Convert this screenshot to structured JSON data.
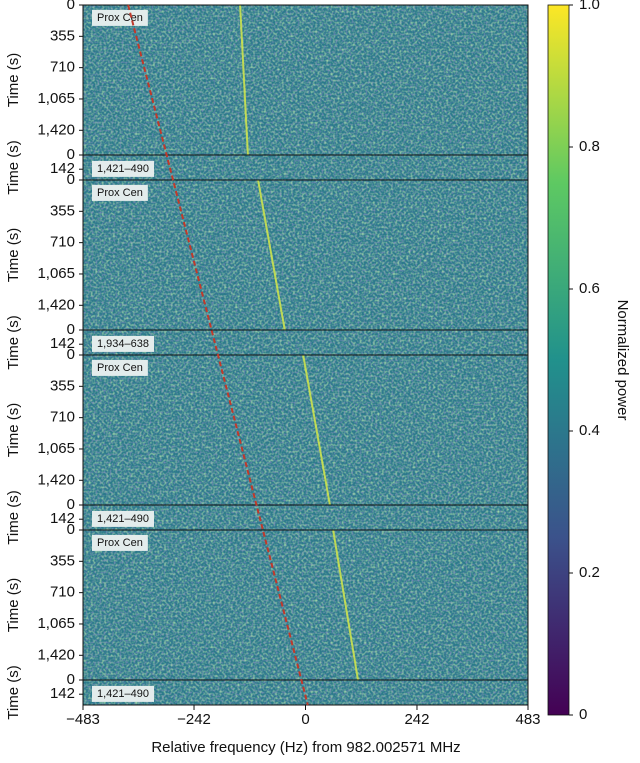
{
  "chart_data": {
    "type": "waterfall",
    "xlabel": "Relative frequency (Hz) from 982.002571 MHz",
    "ylabel": "Time (s)",
    "xlim": [
      -483,
      483
    ],
    "xticks": [
      {
        "value": -483,
        "label": "−483"
      },
      {
        "value": -242,
        "label": "−242"
      },
      0,
      242,
      483
    ],
    "drift": {
      "color": "#c0392b",
      "x": [
        -385,
        5
      ]
    },
    "signal_color": "#d4e84a",
    "panels": [
      {
        "label": "Prox Cen",
        "ylim": [
          0,
          1700
        ],
        "yticks": [
          0,
          355,
          710,
          {
            "value": 1065,
            "label": "1,065"
          },
          {
            "value": 1420,
            "label": "1,420"
          }
        ],
        "signal": [
          -142,
          -125
        ]
      },
      {
        "label": "1,421–490",
        "ylim": [
          0,
          250
        ],
        "yticks": [
          0,
          142
        ]
      },
      {
        "label": "Prox Cen",
        "ylim": [
          0,
          1700
        ],
        "yticks": [
          0,
          355,
          710,
          {
            "value": 1065,
            "label": "1,065"
          },
          {
            "value": 1420,
            "label": "1,420"
          }
        ],
        "signal": [
          -103,
          -45
        ]
      },
      {
        "label": "1,934–638",
        "ylim": [
          0,
          250
        ],
        "yticks": [
          0,
          142
        ]
      },
      {
        "label": "Prox Cen",
        "ylim": [
          0,
          1700
        ],
        "yticks": [
          0,
          355,
          710,
          {
            "value": 1065,
            "label": "1,065"
          },
          {
            "value": 1420,
            "label": "1,420"
          }
        ],
        "signal": [
          -5,
          53
        ]
      },
      {
        "label": "1,421–490",
        "ylim": [
          0,
          250
        ],
        "yticks": [
          0,
          142
        ]
      },
      {
        "label": "Prox Cen",
        "ylim": [
          0,
          1700
        ],
        "yticks": [
          0,
          355,
          710,
          {
            "value": 1065,
            "label": "1,065"
          },
          {
            "value": 1420,
            "label": "1,420"
          }
        ],
        "signal": [
          60,
          114
        ]
      },
      {
        "label": "1,421–490",
        "ylim": [
          0,
          250
        ],
        "yticks": [
          0,
          142
        ]
      }
    ],
    "colorbar": {
      "label": "Normalized power",
      "lim": [
        0,
        1
      ],
      "ticks": [
        0,
        0.2,
        0.4,
        0.6,
        0.8,
        {
          "value": 1,
          "label": "1.0"
        }
      ],
      "colors": [
        "#440154",
        "#3b528b",
        "#21918c",
        "#5ec962",
        "#fde725"
      ]
    }
  }
}
